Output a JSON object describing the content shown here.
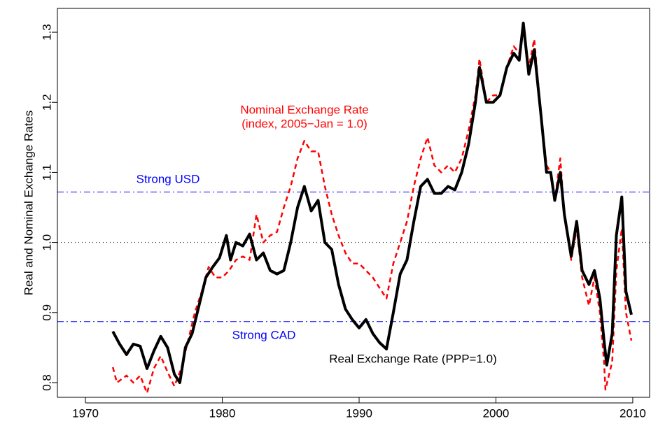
{
  "chart_data": {
    "type": "line",
    "y_label": "Real and Nominal Exchange Rates",
    "annotations": [
      "Nominal Exchange Rate",
      "(index, 2005−Jan = 1.0)",
      "Real Exchange Rate (PPP=1.0)"
    ],
    "hlines": [
      {
        "value": 1.072,
        "color": "#0000ff",
        "style": "dotdash",
        "label": "Strong USD"
      },
      {
        "value": 1.0,
        "color": "#000000",
        "style": "dotted"
      },
      {
        "value": 0.887,
        "color": "#0000ff",
        "style": "dotdash",
        "label": "Strong CAD"
      }
    ],
    "xlim": [
      1967.95,
      2011.23
    ],
    "xticks": [
      1970,
      1980,
      1990,
      2000,
      2010
    ],
    "ylim": [
      0.779,
      1.334
    ],
    "yticks": [
      0.8,
      0.9,
      {
        "value": 1.0,
        "label": "1.0"
      },
      1.1,
      1.2,
      1.3
    ],
    "series": [
      {
        "name": "Nominal Exchange Rate",
        "color": "#ff0000",
        "style": "dashed",
        "x": [
          1972.0,
          1972.3,
          1973.0,
          1973.5,
          1974.0,
          1974.5,
          1975.0,
          1975.5,
          1976.0,
          1976.5,
          1977.0,
          1977.5,
          1978.0,
          1978.5,
          1979.0,
          1979.5,
          1980.0,
          1980.5,
          1981.0,
          1981.5,
          1982.0,
          1982.5,
          1983.0,
          1983.5,
          1984.0,
          1984.5,
          1985.0,
          1985.5,
          1986.0,
          1986.5,
          1987.0,
          1987.5,
          1988.0,
          1988.5,
          1989.0,
          1989.5,
          1990.0,
          1990.5,
          1991.0,
          1991.5,
          1992.0,
          1992.5,
          1993.0,
          1993.5,
          1994.0,
          1994.5,
          1995.0,
          1995.5,
          1996.0,
          1996.5,
          1997.0,
          1997.5,
          1998.0,
          1998.5,
          1998.8,
          1999.3,
          1999.8,
          2000.3,
          2000.8,
          2001.3,
          2001.7,
          2002.0,
          2002.4,
          2002.8,
          2003.3,
          2003.7,
          2004.0,
          2004.3,
          2004.7,
          2005.0,
          2005.5,
          2005.9,
          2006.3,
          2006.8,
          2007.2,
          2007.6,
          2007.9,
          2008.0,
          2008.5,
          2008.8,
          2009.2,
          2009.5,
          2009.9
        ],
        "values": [
          0.822,
          0.8,
          0.81,
          0.8,
          0.81,
          0.785,
          0.82,
          0.838,
          0.815,
          0.795,
          0.82,
          0.86,
          0.9,
          0.93,
          0.965,
          0.95,
          0.95,
          0.96,
          0.975,
          0.98,
          0.975,
          1.04,
          1.0,
          1.01,
          1.015,
          1.05,
          1.08,
          1.12,
          1.145,
          1.13,
          1.13,
          1.08,
          1.04,
          1.01,
          0.985,
          0.97,
          0.97,
          0.96,
          0.95,
          0.935,
          0.92,
          0.97,
          1.0,
          1.03,
          1.08,
          1.12,
          1.15,
          1.11,
          1.1,
          1.11,
          1.1,
          1.12,
          1.16,
          1.21,
          1.262,
          1.2,
          1.21,
          1.21,
          1.25,
          1.28,
          1.27,
          1.31,
          1.25,
          1.29,
          1.18,
          1.11,
          1.1,
          1.06,
          1.12,
          1.04,
          0.975,
          1.02,
          0.95,
          0.91,
          0.95,
          0.9,
          0.83,
          0.79,
          0.83,
          0.96,
          1.02,
          0.9,
          0.86
        ]
      },
      {
        "name": "Real Exchange Rate",
        "color": "#000000",
        "style": "solid",
        "x": [
          1972.0,
          1972.5,
          1973.0,
          1973.5,
          1974.0,
          1974.5,
          1975.0,
          1975.5,
          1976.0,
          1976.5,
          1976.9,
          1977.3,
          1977.8,
          1978.3,
          1978.8,
          1979.3,
          1979.8,
          1980.3,
          1980.6,
          1981.0,
          1981.5,
          1982.0,
          1982.5,
          1983.0,
          1983.5,
          1984.0,
          1984.5,
          1985.0,
          1985.5,
          1986.0,
          1986.5,
          1987.0,
          1987.5,
          1988.0,
          1988.5,
          1989.0,
          1989.5,
          1990.0,
          1990.5,
          1991.0,
          1991.5,
          1992.0,
          1992.5,
          1993.0,
          1993.5,
          1994.0,
          1994.5,
          1995.0,
          1995.5,
          1996.0,
          1996.5,
          1997.0,
          1997.5,
          1998.0,
          1998.5,
          1998.8,
          1999.3,
          1999.8,
          2000.3,
          2000.8,
          2001.3,
          2001.7,
          2002.0,
          2002.4,
          2002.8,
          2003.3,
          2003.7,
          2004.0,
          2004.3,
          2004.7,
          2005.0,
          2005.5,
          2005.9,
          2006.3,
          2006.8,
          2007.2,
          2007.6,
          2007.9,
          2008.1,
          2008.5,
          2008.8,
          2009.2,
          2009.5,
          2009.9
        ],
        "values": [
          0.873,
          0.855,
          0.84,
          0.855,
          0.852,
          0.82,
          0.845,
          0.866,
          0.85,
          0.812,
          0.8,
          0.85,
          0.87,
          0.91,
          0.95,
          0.965,
          0.978,
          1.01,
          0.975,
          1.0,
          0.995,
          1.012,
          0.975,
          0.985,
          0.96,
          0.955,
          0.96,
          1.0,
          1.05,
          1.08,
          1.045,
          1.06,
          1.0,
          0.99,
          0.94,
          0.905,
          0.89,
          0.878,
          0.89,
          0.87,
          0.857,
          0.848,
          0.9,
          0.955,
          0.975,
          1.03,
          1.08,
          1.09,
          1.07,
          1.07,
          1.08,
          1.075,
          1.1,
          1.14,
          1.2,
          1.25,
          1.2,
          1.2,
          1.21,
          1.25,
          1.27,
          1.26,
          1.313,
          1.24,
          1.275,
          1.18,
          1.1,
          1.1,
          1.06,
          1.1,
          1.04,
          0.98,
          1.03,
          0.96,
          0.94,
          0.96,
          0.92,
          0.86,
          0.825,
          0.87,
          1.01,
          1.065,
          0.93,
          0.897
        ]
      }
    ]
  }
}
